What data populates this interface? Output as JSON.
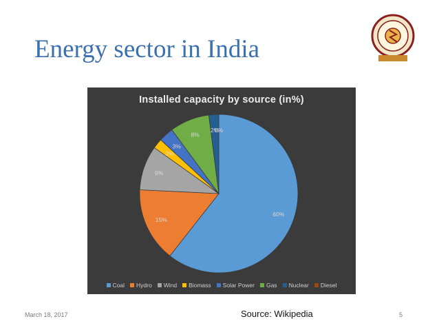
{
  "slide": {
    "title": "Energy sector in India",
    "date": "March 18, 2017",
    "source": "Source: Wikipedia",
    "page_number": "5"
  },
  "colors": {
    "title": "#3a6fb0",
    "chart_background": "#3b3b3b"
  },
  "chart_data": {
    "type": "pie",
    "title": "Installed capacity by source (in%)",
    "categories": [
      "Coal",
      "Hydro",
      "Wind",
      "Biomass",
      "Solar Power",
      "Gas",
      "Nuclear",
      "Diesel"
    ],
    "values": [
      60,
      15,
      9,
      2,
      3,
      8,
      2,
      0
    ],
    "data_labels": [
      "60%",
      "15%",
      "9%",
      "2%",
      "3%",
      "8%",
      "2%",
      "0%"
    ],
    "colors": [
      "#5b9bd5",
      "#ed7d31",
      "#a5a5a5",
      "#ffc000",
      "#4472c4",
      "#70ad47",
      "#255e91",
      "#9e480e"
    ],
    "legend_position": "bottom"
  }
}
